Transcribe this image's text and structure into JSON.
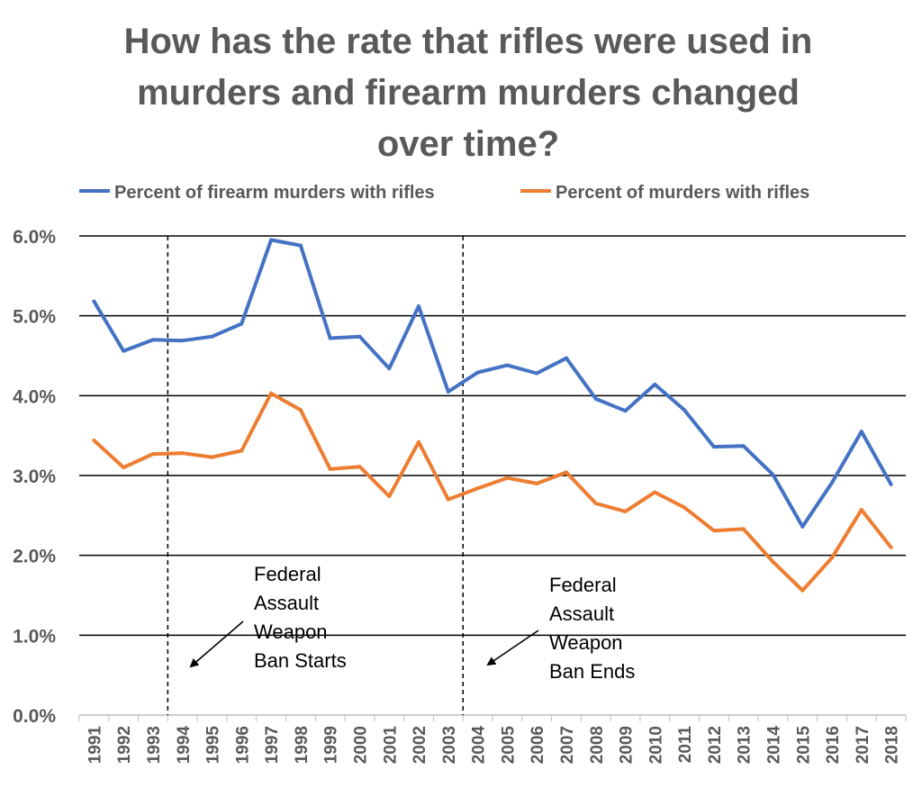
{
  "colors": {
    "firearm_series": "#4472C4",
    "murders_series": "#ED7D31",
    "title": "#595959",
    "gridline": "#000000"
  },
  "chart_data": {
    "type": "line",
    "title": "How has the rate that rifles were used in murders and firearm murders changed over time?",
    "title_lines": [
      "How has the rate that rifles were used in",
      "murders and firearm murders changed",
      "over time?"
    ],
    "xlabel": "",
    "ylabel": "",
    "ylim": [
      0,
      6.0
    ],
    "yticks": [
      0,
      1,
      2,
      3,
      4,
      5,
      6
    ],
    "ytick_labels": [
      "0.0%",
      "1.0%",
      "2.0%",
      "3.0%",
      "4.0%",
      "5.0%",
      "6.0%"
    ],
    "grid": true,
    "legend_position": "top",
    "categories": [
      "1991",
      "1992",
      "1993",
      "1994",
      "1995",
      "1996",
      "1997",
      "1998",
      "1999",
      "2000",
      "2001",
      "2002",
      "2003",
      "2004",
      "2005",
      "2006",
      "2007",
      "2008",
      "2009",
      "2010",
      "2011",
      "2012",
      "2013",
      "2014",
      "2015",
      "2016",
      "2017",
      "2018"
    ],
    "series": [
      {
        "name": "Percent of firearm murders with rifles",
        "color": "#4472C4",
        "values": [
          5.18,
          4.56,
          4.7,
          4.69,
          4.74,
          4.9,
          5.95,
          5.88,
          4.72,
          4.74,
          4.34,
          5.12,
          4.05,
          4.29,
          4.38,
          4.28,
          4.47,
          3.96,
          3.81,
          4.14,
          3.82,
          3.36,
          3.37,
          3.01,
          2.36,
          2.91,
          3.55,
          2.89
        ]
      },
      {
        "name": "Percent of murders with rifles",
        "color": "#ED7D31",
        "values": [
          3.44,
          3.1,
          3.27,
          3.28,
          3.23,
          3.31,
          4.03,
          3.82,
          3.08,
          3.11,
          2.74,
          3.42,
          2.7,
          2.84,
          2.97,
          2.9,
          3.04,
          2.65,
          2.55,
          2.79,
          2.6,
          2.31,
          2.33,
          1.92,
          1.56,
          1.97,
          2.57,
          2.1
        ]
      }
    ],
    "annotations": [
      {
        "year": "1994",
        "lines": [
          "Federal",
          "Assault",
          "Weapon",
          "Ban Starts"
        ]
      },
      {
        "year": "2004",
        "lines": [
          "Federal",
          "Assault",
          "Weapon",
          "Ban Ends"
        ]
      }
    ]
  }
}
